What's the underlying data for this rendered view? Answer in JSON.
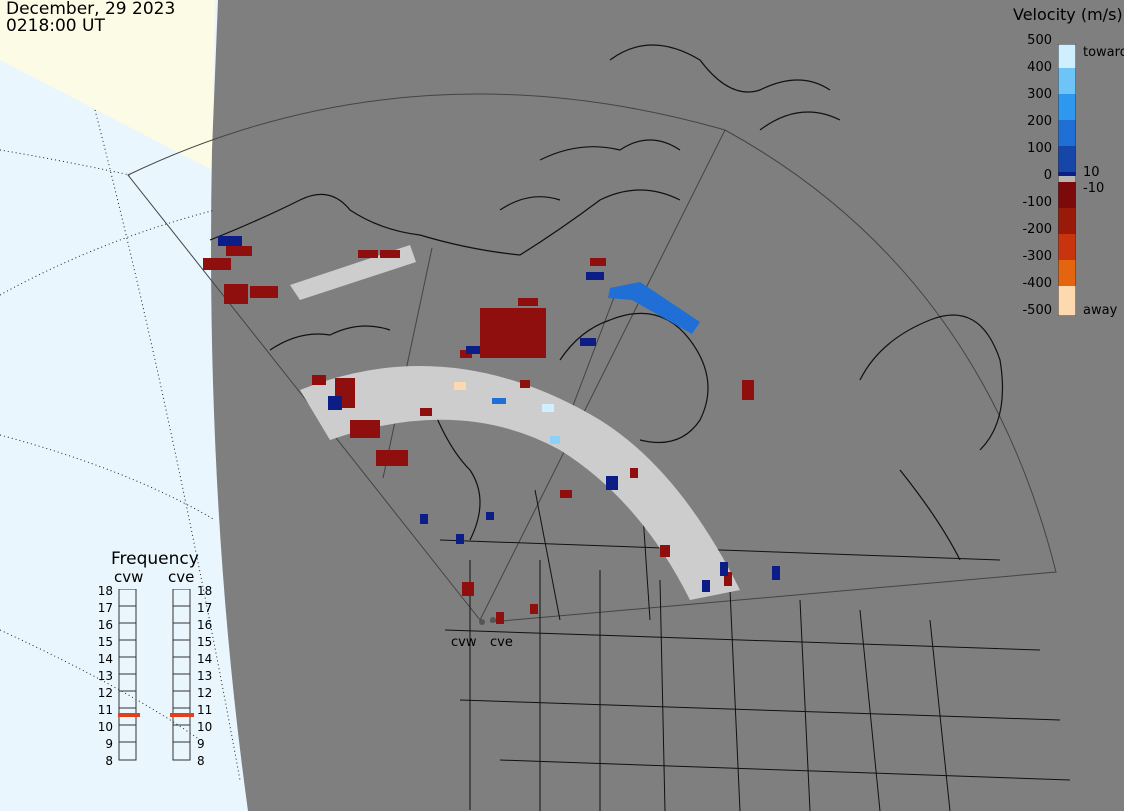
{
  "header": {
    "date": "December, 29 2023",
    "time": "0218:00 UT"
  },
  "colorbar": {
    "title": "Velocity (m/s)",
    "ticks": [
      "500",
      "400",
      "300",
      "200",
      "100",
      "0",
      "-100",
      "-200",
      "-300",
      "-400",
      "-500"
    ],
    "label_toward": "toward",
    "label_away": "away",
    "small_pos": "10",
    "small_neg": "-10",
    "colors_toward": [
      "#cfeefe",
      "#6fc4f7",
      "#2e97ee",
      "#1f6fd6",
      "#1646a8",
      "#0c1e86"
    ],
    "colors_away": [
      "#7c0a0a",
      "#9a1a0a",
      "#c8340d",
      "#e4640f",
      "#f39a45",
      "#fcd9ae"
    ],
    "ground_scatter": "#b5b5b5"
  },
  "frequency_panel": {
    "title": "Frequency",
    "radars": [
      {
        "code": "cvw",
        "freq_mhz": 11
      },
      {
        "code": "cve",
        "freq_mhz": 11
      }
    ],
    "scale": [
      "18",
      "17",
      "16",
      "15",
      "14",
      "13",
      "12",
      "11",
      "10",
      "9",
      "8"
    ],
    "marker_color": "#e0401a"
  },
  "map": {
    "land_color": "#7f7f7f",
    "ocean_color": "#e9f6fe",
    "daylight_color": "#fbfbe6",
    "radar_labels": [
      "cvw",
      "cve"
    ]
  }
}
